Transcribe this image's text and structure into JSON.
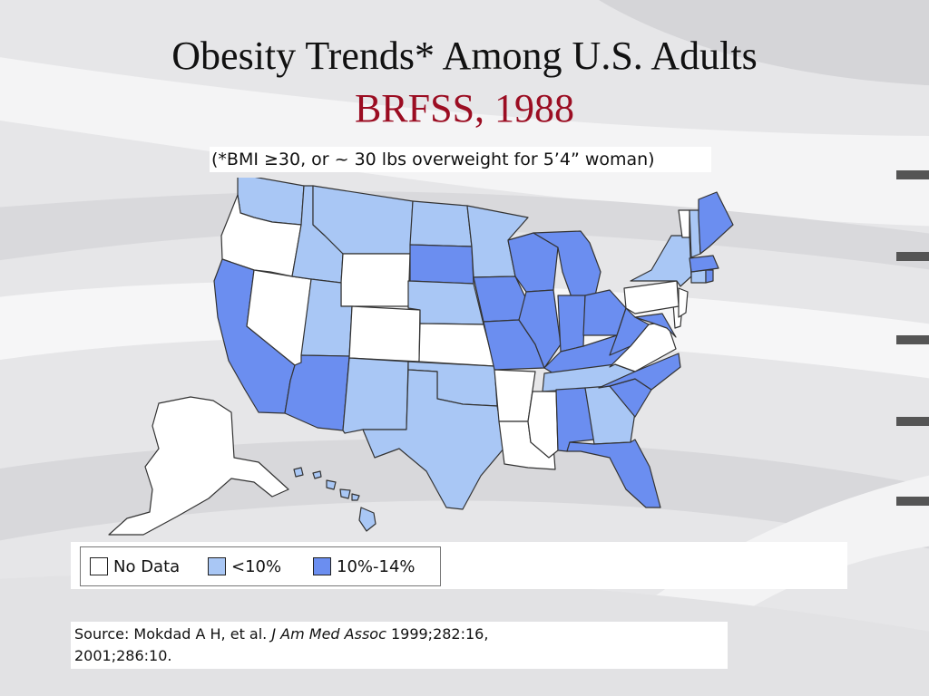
{
  "slide": {
    "title": "Obesity Trends* Among U.S. Adults",
    "subtitle": "BRFSS, 1988",
    "note": "(*BMI ≥30, or ~ 30 lbs overweight for 5’4” woman)"
  },
  "colors": {
    "title": "#111111",
    "subtitle": "#9b0d22",
    "no_data": "#ffffff",
    "under_10": "#a9c7f5",
    "10_14": "#6b8ef0",
    "border": "#333333"
  },
  "legend": [
    {
      "label": "No Data",
      "category": "no_data",
      "color": "#ffffff"
    },
    {
      "label": "<10%",
      "category": "under_10",
      "color": "#a9c7f5"
    },
    {
      "label": "10%-14%",
      "category": "10_14",
      "color": "#6b8ef0"
    }
  ],
  "map": {
    "states": {
      "WA": "under_10",
      "OR": "no_data",
      "CA": "10_14",
      "NV": "no_data",
      "ID": "under_10",
      "MT": "under_10",
      "WY": "no_data",
      "UT": "under_10",
      "AZ": "10_14",
      "CO": "no_data",
      "NM": "under_10",
      "ND": "under_10",
      "SD": "10_14",
      "NE": "under_10",
      "KS": "no_data",
      "OK": "under_10",
      "TX": "under_10",
      "MN": "under_10",
      "IA": "10_14",
      "MO": "10_14",
      "AR": "no_data",
      "LA": "no_data",
      "WI": "10_14",
      "IL": "10_14",
      "MI": "10_14",
      "IN": "10_14",
      "OH": "10_14",
      "KY": "10_14",
      "TN": "under_10",
      "MS": "no_data",
      "AL": "10_14",
      "GA": "under_10",
      "FL": "10_14",
      "SC": "10_14",
      "NC": "10_14",
      "VA": "no_data",
      "WV": "10_14",
      "MD": "10_14",
      "DE": "no_data",
      "NJ": "no_data",
      "PA": "no_data",
      "NY": "under_10",
      "CT": "under_10",
      "RI": "10_14",
      "MA": "10_14",
      "VT": "no_data",
      "NH": "under_10",
      "ME": "10_14",
      "AK": "no_data",
      "HI": "under_10"
    }
  },
  "source": {
    "prefix": "Source: Mokdad A H, et al. ",
    "journal": "J Am Med Assoc",
    "suffix": " 1999;282:16,",
    "line2": "2001;286:10."
  }
}
